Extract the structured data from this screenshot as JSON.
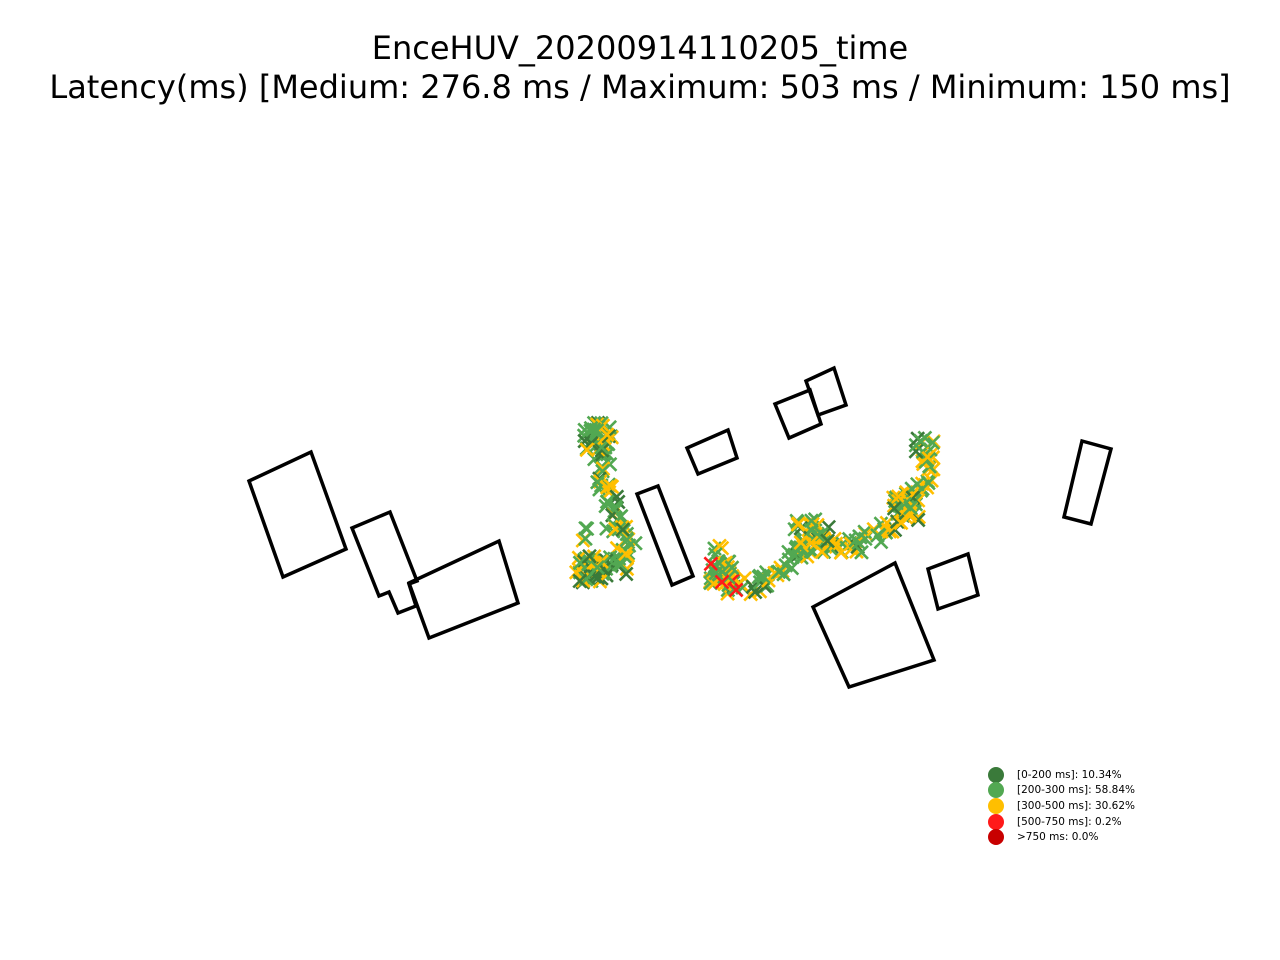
{
  "chart_data": {
    "type": "scatter",
    "title": "EnceHUV_20200914110205_time",
    "subtitle": "Latency(ms) [Medium: 276.8 ms / Maximum: 503 ms / Minimum: 150 ms]",
    "marker": "x",
    "axes_visible": false,
    "grid": false,
    "legend_position": "lower-right",
    "categories": [
      {
        "label": "[0-200 ms]: 10.34%",
        "range": "[0-200 ms]",
        "percent": 10.34,
        "color": "#3a7a3a"
      },
      {
        "label": "[200-300 ms]: 58.84%",
        "range": "[200-300 ms]",
        "percent": 58.84,
        "color": "#52a852"
      },
      {
        "label": "[300-500 ms]: 30.62%",
        "range": "[300-500 ms]",
        "percent": 30.62,
        "color": "#ffbf00"
      },
      {
        "label": "[500-750 ms]: 0.2%",
        "range": "[500-750 ms]",
        "percent": 0.2,
        "color": "#ff1a1a"
      },
      {
        "label": ">750 ms: 0.0%",
        "range": ">750 ms",
        "percent": 0.0,
        "color": "#c80000"
      }
    ],
    "statistics": {
      "medium_ms": 276.8,
      "maximum_ms": 503,
      "minimum_ms": 150
    }
  }
}
